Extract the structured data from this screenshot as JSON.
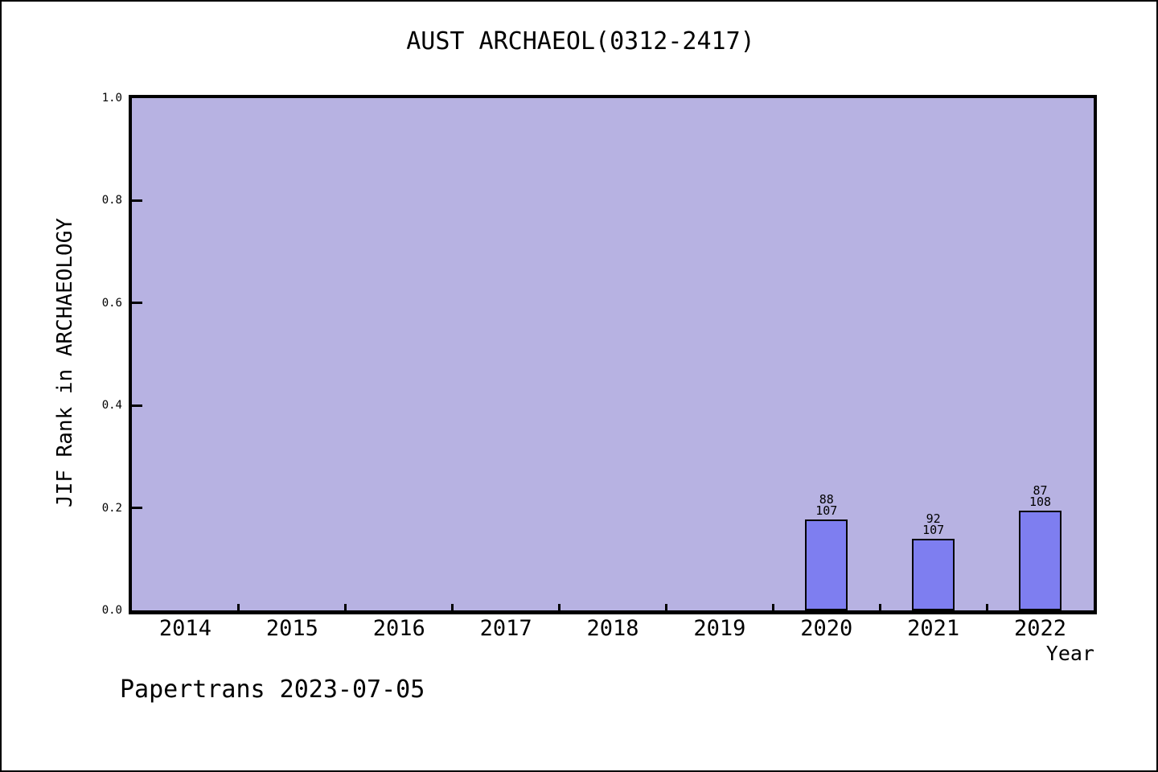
{
  "figure": {
    "watermark": "Papertrans 2023-07-05"
  },
  "colors": {
    "plot_background": "#b7b2e2",
    "bar_fill": "#7e7ef0",
    "bar_border": "#000000",
    "frame": "#000000",
    "text": "#000000"
  },
  "chart_data": {
    "type": "bar",
    "title": "AUST ARCHAEOL(0312-2417)",
    "xlabel": "Year",
    "ylabel": "JIF Rank in ARCHAEOLOGY",
    "x_categories": [
      "2014",
      "2015",
      "2016",
      "2017",
      "2018",
      "2019",
      "2020",
      "2021",
      "2022"
    ],
    "y_ticks": [
      "1.0",
      "0.8",
      "0.6",
      "0.4",
      "0.2",
      "0.0"
    ],
    "ylim": [
      0.0,
      1.0
    ],
    "grid": false,
    "legend": false,
    "bars": [
      {
        "category": "2020",
        "rank": 88,
        "total": 107,
        "label": "88/107",
        "height_value": 0.1776
      },
      {
        "category": "2021",
        "rank": 92,
        "total": 107,
        "label": "92/107",
        "height_value": 0.1402
      },
      {
        "category": "2022",
        "rank": 87,
        "total": 108,
        "label": "87/108",
        "height_value": 0.1944
      }
    ]
  }
}
